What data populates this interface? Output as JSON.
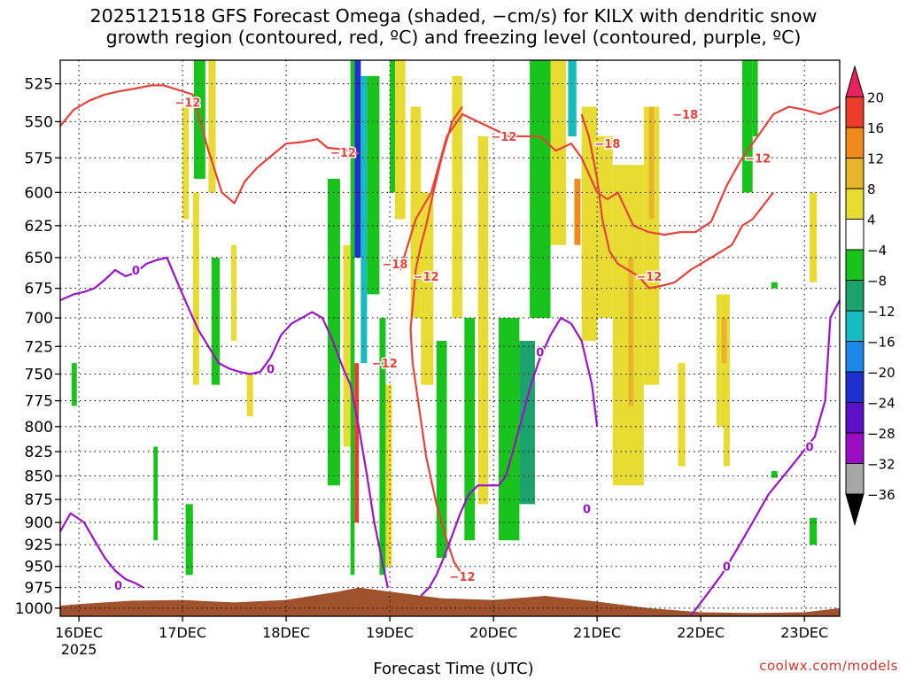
{
  "header": {
    "title_line1": "2025121518 GFS Forecast Omega (shaded, −cm/s) for KILX with dendritic snow",
    "title_line2": "growth region (contoured, red, ºC) and freezing level (contoured, purple, ºC)"
  },
  "footer": {
    "credit": "coolwx.com/models"
  },
  "chart_data": {
    "type": "heatmap",
    "title": "2025121518 GFS Forecast Omega (shaded, −cm/s) for KILX with dendritic snow growth region (contoured, red, ºC) and freezing level (contoured, purple, ºC)",
    "xlabel": "Forecast Time (UTC)",
    "ylabel": "",
    "x_ticks": [
      "16DEC",
      "17DEC",
      "18DEC",
      "19DEC",
      "20DEC",
      "21DEC",
      "22DEC",
      "23DEC"
    ],
    "x_tick_days": [
      16,
      17,
      18,
      19,
      20,
      21,
      22,
      23
    ],
    "x_year_label": "2025",
    "xlim_days": [
      15.82,
      23.34
    ],
    "y_ticks": [
      525,
      550,
      575,
      600,
      625,
      650,
      675,
      700,
      725,
      750,
      775,
      800,
      825,
      850,
      875,
      900,
      925,
      950,
      975,
      1000
    ],
    "ylim_hpa": [
      1010,
      510
    ],
    "y_scale": "log-pressure",
    "grid": true,
    "colorbar": {
      "ticks": [
        "20",
        "16",
        "12",
        "8",
        "4",
        "−4",
        "−8",
        "−12",
        "−16",
        "−20",
        "−24",
        "−28",
        "−32",
        "−36"
      ],
      "colors": [
        "#e8225c",
        "#ee3c2b",
        "#f08a1c",
        "#e6b52c",
        "#e8dc33",
        "#ffffff",
        "#18c31b",
        "#1ba36b",
        "#17bcc1",
        "#1e88e8",
        "#2030d0",
        "#5c10c8",
        "#9c0ec4",
        "#a6a6a6",
        "#000000"
      ]
    },
    "shading": [
      {
        "x0": 15.93,
        "x1": 15.98,
        "p0": 740,
        "p1": 780,
        "color": "#18c31b"
      },
      {
        "x0": 17.0,
        "x1": 17.06,
        "p0": 540,
        "p1": 620,
        "color": "#e8dc33"
      },
      {
        "x0": 17.11,
        "x1": 17.22,
        "p0": 510,
        "p1": 590,
        "color": "#18c31b"
      },
      {
        "x0": 17.1,
        "x1": 17.16,
        "p0": 600,
        "p1": 760,
        "color": "#e8dc33"
      },
      {
        "x0": 17.25,
        "x1": 17.32,
        "p0": 510,
        "p1": 600,
        "color": "#e8dc33"
      },
      {
        "x0": 17.28,
        "x1": 17.36,
        "p0": 650,
        "p1": 760,
        "color": "#18c31b"
      },
      {
        "x0": 17.47,
        "x1": 17.52,
        "p0": 640,
        "p1": 720,
        "color": "#e8dc33"
      },
      {
        "x0": 17.62,
        "x1": 17.68,
        "p0": 750,
        "p1": 790,
        "color": "#e8dc33"
      },
      {
        "x0": 17.03,
        "x1": 17.1,
        "p0": 880,
        "p1": 960,
        "color": "#18c31b"
      },
      {
        "x0": 16.72,
        "x1": 16.76,
        "p0": 820,
        "p1": 920,
        "color": "#18c31b"
      },
      {
        "x0": 18.4,
        "x1": 18.52,
        "p0": 590,
        "p1": 860,
        "color": "#18c31b"
      },
      {
        "x0": 18.55,
        "x1": 18.62,
        "p0": 640,
        "p1": 820,
        "color": "#e8dc33"
      },
      {
        "x0": 18.62,
        "x1": 18.66,
        "p0": 510,
        "p1": 960,
        "color": "#18c31b"
      },
      {
        "x0": 18.66,
        "x1": 18.72,
        "p0": 510,
        "p1": 650,
        "color": "#2030d0"
      },
      {
        "x0": 18.72,
        "x1": 18.78,
        "p0": 520,
        "p1": 740,
        "color": "#17bcc1"
      },
      {
        "x0": 18.66,
        "x1": 18.7,
        "p0": 740,
        "p1": 900,
        "color": "#ee3c2b"
      },
      {
        "x0": 18.78,
        "x1": 18.9,
        "p0": 520,
        "p1": 680,
        "color": "#18c31b"
      },
      {
        "x0": 18.9,
        "x1": 18.96,
        "p0": 700,
        "p1": 960,
        "color": "#18c31b"
      },
      {
        "x0": 18.96,
        "x1": 19.02,
        "p0": 760,
        "p1": 950,
        "color": "#e8dc33"
      },
      {
        "x0": 19.0,
        "x1": 19.08,
        "p0": 510,
        "p1": 600,
        "color": "#18c31b"
      },
      {
        "x0": 19.05,
        "x1": 19.15,
        "p0": 510,
        "p1": 620,
        "color": "#e8dc33"
      },
      {
        "x0": 19.2,
        "x1": 19.3,
        "p0": 540,
        "p1": 700,
        "color": "#e8dc33"
      },
      {
        "x0": 19.3,
        "x1": 19.42,
        "p0": 600,
        "p1": 760,
        "color": "#e8dc33"
      },
      {
        "x0": 19.45,
        "x1": 19.55,
        "p0": 720,
        "p1": 940,
        "color": "#18c31b"
      },
      {
        "x0": 19.6,
        "x1": 19.7,
        "p0": 520,
        "p1": 700,
        "color": "#e8dc33"
      },
      {
        "x0": 19.72,
        "x1": 19.82,
        "p0": 700,
        "p1": 920,
        "color": "#18c31b"
      },
      {
        "x0": 19.85,
        "x1": 19.95,
        "p0": 560,
        "p1": 880,
        "color": "#e8dc33"
      },
      {
        "x0": 20.05,
        "x1": 20.25,
        "p0": 700,
        "p1": 920,
        "color": "#18c31b"
      },
      {
        "x0": 20.25,
        "x1": 20.4,
        "p0": 720,
        "p1": 880,
        "color": "#1ba36b"
      },
      {
        "x0": 20.35,
        "x1": 20.55,
        "p0": 510,
        "p1": 700,
        "color": "#18c31b"
      },
      {
        "x0": 20.55,
        "x1": 20.7,
        "p0": 510,
        "p1": 640,
        "color": "#e8dc33"
      },
      {
        "x0": 20.72,
        "x1": 20.8,
        "p0": 510,
        "p1": 560,
        "color": "#17bcc1"
      },
      {
        "x0": 20.85,
        "x1": 21.0,
        "p0": 540,
        "p1": 720,
        "color": "#e8dc33"
      },
      {
        "x0": 20.78,
        "x1": 20.84,
        "p0": 590,
        "p1": 640,
        "color": "#f08a1c"
      },
      {
        "x0": 21.0,
        "x1": 21.15,
        "p0": 560,
        "p1": 700,
        "color": "#e8dc33"
      },
      {
        "x0": 21.15,
        "x1": 21.45,
        "p0": 580,
        "p1": 860,
        "color": "#e8dc33"
      },
      {
        "x0": 21.45,
        "x1": 21.6,
        "p0": 540,
        "p1": 760,
        "color": "#e8dc33"
      },
      {
        "x0": 21.5,
        "x1": 21.55,
        "p0": 540,
        "p1": 620,
        "color": "#e6b52c"
      },
      {
        "x0": 21.3,
        "x1": 21.35,
        "p0": 650,
        "p1": 780,
        "color": "#e6b52c"
      },
      {
        "x0": 21.78,
        "x1": 21.85,
        "p0": 740,
        "p1": 840,
        "color": "#e8dc33"
      },
      {
        "x0": 22.15,
        "x1": 22.28,
        "p0": 680,
        "p1": 800,
        "color": "#e8dc33"
      },
      {
        "x0": 22.2,
        "x1": 22.25,
        "p0": 700,
        "p1": 740,
        "color": "#e6b52c"
      },
      {
        "x0": 22.22,
        "x1": 22.28,
        "p0": 780,
        "p1": 840,
        "color": "#e8dc33"
      },
      {
        "x0": 22.4,
        "x1": 22.5,
        "p0": 510,
        "p1": 600,
        "color": "#18c31b"
      },
      {
        "x0": 22.5,
        "x1": 22.55,
        "p0": 510,
        "p1": 560,
        "color": "#18c31b"
      },
      {
        "x0": 22.68,
        "x1": 22.74,
        "p0": 670,
        "p1": 675,
        "color": "#18c31b"
      },
      {
        "x0": 22.68,
        "x1": 22.74,
        "p0": 845,
        "p1": 852,
        "color": "#18c31b"
      },
      {
        "x0": 23.05,
        "x1": 23.12,
        "p0": 600,
        "p1": 670,
        "color": "#e8dc33"
      },
      {
        "x0": 23.05,
        "x1": 23.12,
        "p0": 895,
        "p1": 925,
        "color": "#18c31b"
      }
    ],
    "series": [
      {
        "color": "#e8423a",
        "x": [
          15.82,
          15.95,
          16.1,
          16.25,
          16.38,
          16.55,
          16.7,
          16.82,
          16.96,
          17.1,
          17.25,
          17.38,
          17.5,
          17.6,
          17.72,
          17.85,
          18.0,
          18.15,
          18.3,
          18.4,
          18.55,
          18.7
        ],
        "y": [
          553,
          542,
          536,
          532,
          530,
          528,
          526,
          526,
          529,
          532,
          570,
          600,
          608,
          592,
          582,
          574,
          565,
          564,
          562,
          568,
          569,
          572
        ]
      },
      {
        "color": "#e8423a",
        "x": [
          19.1,
          19.25,
          19.4,
          19.55,
          19.7,
          19.85,
          20.0,
          20.15,
          20.3,
          20.45,
          20.6,
          20.75,
          20.85,
          21.0,
          21.1,
          21.2,
          21.35,
          21.5,
          21.65,
          21.8,
          21.95,
          22.1,
          22.25,
          22.4,
          22.55,
          22.7,
          22.85,
          23.0,
          23.15,
          23.34
        ],
        "y": [
          660,
          620,
          600,
          560,
          545,
          550,
          555,
          560,
          560,
          560,
          570,
          565,
          575,
          600,
          605,
          600,
          625,
          630,
          632,
          630,
          630,
          622,
          595,
          575,
          560,
          545,
          540,
          542,
          545,
          540
        ]
      },
      {
        "color": "#e8423a",
        "x": [
          19.7,
          19.6,
          19.5,
          19.42,
          19.35,
          19.3,
          19.25,
          19.22,
          19.2,
          19.22,
          19.28,
          19.35,
          19.45,
          19.55,
          19.62,
          19.7
        ],
        "y": [
          540,
          550,
          575,
          600,
          625,
          640,
          660,
          690,
          710,
          740,
          780,
          830,
          880,
          920,
          945,
          960
        ]
      },
      {
        "color": "#e8423a",
        "x": [
          20.85,
          20.92,
          21.0,
          21.05,
          21.12,
          21.2,
          21.3,
          21.4,
          21.5,
          21.62,
          21.75,
          21.9,
          22.0,
          22.1,
          22.2,
          22.3,
          22.4,
          22.5,
          22.6,
          22.7
        ],
        "y": [
          545,
          560,
          590,
          620,
          645,
          655,
          660,
          665,
          675,
          673,
          670,
          660,
          655,
          650,
          645,
          640,
          625,
          620,
          610,
          600
        ]
      },
      {
        "color": "#9a14c8",
        "x": [
          15.82,
          15.95,
          16.05,
          16.15,
          16.25,
          16.35,
          16.45,
          16.55,
          16.65,
          16.75,
          16.85,
          16.95,
          17.05,
          17.15,
          17.25,
          17.35,
          17.45,
          17.55,
          17.65,
          17.75,
          17.85,
          17.95,
          18.05,
          18.15,
          18.25,
          18.35,
          18.45,
          18.55,
          18.62,
          18.7,
          18.78,
          18.85,
          18.92,
          18.98
        ],
        "y": [
          685,
          680,
          678,
          675,
          668,
          660,
          665,
          662,
          655,
          652,
          650,
          670,
          690,
          710,
          725,
          740,
          745,
          748,
          750,
          748,
          735,
          715,
          705,
          700,
          695,
          700,
          720,
          745,
          760,
          800,
          850,
          900,
          940,
          975
        ]
      },
      {
        "color": "#9a14c8",
        "x": [
          19.3,
          19.38,
          19.45,
          19.52,
          19.6,
          19.68,
          19.76,
          19.85,
          19.95,
          20.05,
          20.12,
          20.2,
          20.28,
          20.36,
          20.45,
          20.55,
          20.65,
          20.75,
          20.85,
          20.95,
          21.0
        ],
        "y": [
          985,
          975,
          960,
          940,
          915,
          890,
          870,
          860,
          860,
          860,
          850,
          820,
          790,
          760,
          735,
          715,
          700,
          705,
          720,
          760,
          800
        ]
      },
      {
        "color": "#9a14c8",
        "x": [
          15.82,
          15.92,
          16.05,
          16.15,
          16.25,
          16.35,
          16.45,
          16.55,
          16.62
        ],
        "y": [
          910,
          890,
          900,
          920,
          940,
          955,
          965,
          970,
          975
        ]
      },
      {
        "color": "#9a14c8",
        "x": [
          21.9,
          22.05,
          22.2,
          22.35,
          22.5,
          22.65,
          22.8,
          22.95,
          23.1,
          23.2,
          23.25,
          23.34
        ],
        "y": [
          1010,
          985,
          960,
          930,
          900,
          870,
          850,
          830,
          810,
          775,
          700,
          685
        ]
      }
    ],
    "contour_labels": [
      {
        "text": "−12",
        "x": 17.05,
        "y": 537,
        "color": "#e8423a"
      },
      {
        "text": "−12",
        "x": 18.55,
        "y": 571,
        "color": "#e8423a"
      },
      {
        "text": "−12",
        "x": 20.1,
        "y": 560,
        "color": "#e8423a"
      },
      {
        "text": "−18",
        "x": 21.1,
        "y": 565,
        "color": "#e8423a"
      },
      {
        "text": "−18",
        "x": 21.85,
        "y": 545,
        "color": "#e8423a"
      },
      {
        "text": "−12",
        "x": 22.55,
        "y": 575,
        "color": "#e8423a"
      },
      {
        "text": "−18",
        "x": 19.05,
        "y": 655,
        "color": "#e8423a"
      },
      {
        "text": "−12",
        "x": 19.35,
        "y": 665,
        "color": "#e8423a"
      },
      {
        "text": "−12",
        "x": 21.5,
        "y": 665,
        "color": "#e8423a"
      },
      {
        "text": "−12",
        "x": 18.95,
        "y": 740,
        "color": "#e8423a"
      },
      {
        "text": "−12",
        "x": 19.7,
        "y": 962,
        "color": "#e8423a"
      },
      {
        "text": "0",
        "x": 16.55,
        "y": 660,
        "color": "#9a14c8"
      },
      {
        "text": "0",
        "x": 17.85,
        "y": 745,
        "color": "#9a14c8"
      },
      {
        "text": "0",
        "x": 20.45,
        "y": 730,
        "color": "#9a14c8"
      },
      {
        "text": "0",
        "x": 20.9,
        "y": 885,
        "color": "#9a14c8"
      },
      {
        "text": "0",
        "x": 22.25,
        "y": 950,
        "color": "#9a14c8"
      },
      {
        "text": "0",
        "x": 23.05,
        "y": 820,
        "color": "#9a14c8"
      },
      {
        "text": "0",
        "x": 16.38,
        "y": 972,
        "color": "#9a14c8"
      }
    ],
    "terrain": {
      "color": "#a0522d",
      "x": [
        15.82,
        16.0,
        16.5,
        17.0,
        17.5,
        18.0,
        18.5,
        18.7,
        19.0,
        19.5,
        20.0,
        20.5,
        21.0,
        21.5,
        22.0,
        22.5,
        23.0,
        23.34
      ],
      "y": [
        997,
        995,
        991,
        990,
        993,
        990,
        980,
        975,
        980,
        988,
        990,
        985,
        992,
        1000,
        1005,
        1006,
        1005,
        1000
      ]
    }
  }
}
